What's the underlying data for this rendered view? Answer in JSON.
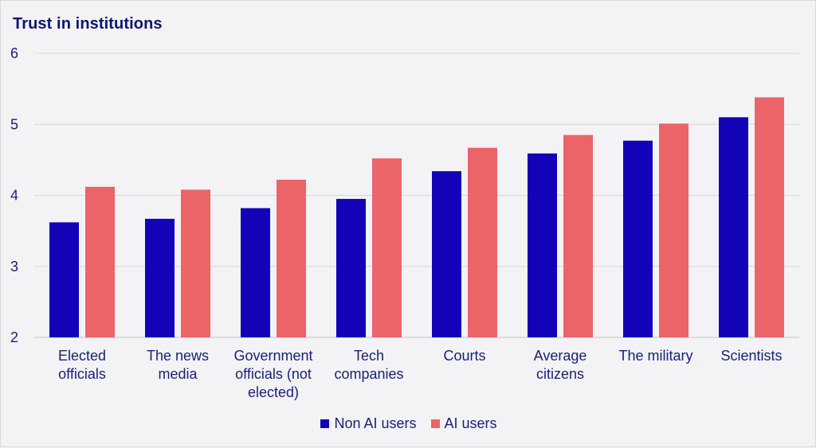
{
  "chart_data": {
    "type": "bar",
    "title": "Trust in institutions",
    "categories": [
      [
        "Elected",
        "officials"
      ],
      [
        "The news",
        "media"
      ],
      [
        "Government",
        "officials (not",
        "elected)"
      ],
      [
        "Tech",
        "companies"
      ],
      [
        "Courts"
      ],
      [
        "Average",
        "citizens"
      ],
      [
        "The military"
      ],
      [
        "Scientists"
      ]
    ],
    "series": [
      {
        "name": "Non AI users",
        "color": "#1202b8",
        "values": [
          3.62,
          3.67,
          3.82,
          3.95,
          4.34,
          4.59,
          4.77,
          5.1
        ]
      },
      {
        "name": "AI users",
        "color": "#eb6468",
        "values": [
          4.12,
          4.08,
          4.22,
          4.52,
          4.67,
          4.85,
          5.01,
          5.38
        ]
      }
    ],
    "yticks": [
      2,
      3,
      4,
      5,
      6
    ],
    "ylim": [
      2,
      6
    ],
    "grid": true,
    "legend_position": "bottom-center"
  }
}
